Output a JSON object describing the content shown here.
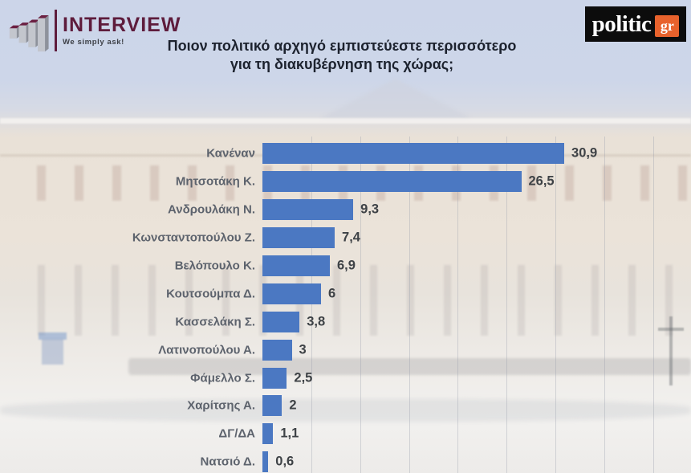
{
  "header": {
    "interview": {
      "brand": "INTERVIEW",
      "tagline": "We simply ask!"
    },
    "politic": {
      "brand": "politic",
      "badge": "gr"
    }
  },
  "title": {
    "line1": "Ποιον πολιτικό αρχηγό εμπιστεύεστε περισσότερο",
    "line2": "για τη διακυβέρνηση της χώρας;"
  },
  "colors": {
    "bar": "#4b78c2",
    "label": "#5d636d",
    "value": "#3e4246",
    "title": "#1c222e",
    "brand_maroon": "#5e1c3c",
    "politic_orange": "#e8622c",
    "header_bg": "#ccd5e9"
  },
  "chart_data": {
    "type": "bar",
    "orientation": "horizontal",
    "title": "Ποιον πολιτικό αρχηγό εμπιστεύεστε περισσότερο για τη διακυβέρνηση της χώρας;",
    "categories": [
      "Κανέναν",
      "Μητσοτάκη Κ.",
      "Ανδρουλάκη Ν.",
      "Κωνσταντοπούλου Ζ.",
      "Βελόπουλο Κ.",
      "Κουτσούμπα Δ.",
      "Κασσελάκη Σ.",
      "Λατινοπούλου Α.",
      "Φάμελλο Σ.",
      "Χαρίτσης Α.",
      "ΔΓ/ΔΑ",
      "Νατσιό Δ."
    ],
    "values": [
      30.9,
      26.5,
      9.3,
      7.4,
      6.9,
      6,
      3.8,
      3,
      2.5,
      2,
      1.1,
      0.6
    ],
    "values_display": [
      "30,9",
      "26,5",
      "9,3",
      "7,4",
      "6,9",
      "6",
      "3,8",
      "3",
      "2,5",
      "2",
      "1,1",
      "0,6"
    ],
    "xlim": [
      0,
      42.5
    ],
    "gridlines_every": 5,
    "grid": true,
    "legend": false,
    "data_labels": true
  }
}
